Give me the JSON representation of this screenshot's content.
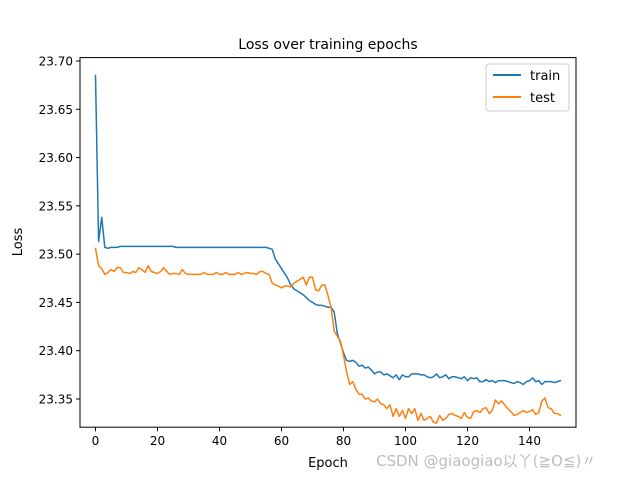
{
  "chart_data": {
    "type": "line",
    "title": "Loss over training epochs",
    "xlabel": "Epoch",
    "ylabel": "Loss",
    "xlim": [
      -5,
      155
    ],
    "ylim": [
      23.3208,
      23.7035
    ],
    "xticks": [
      0,
      20,
      40,
      60,
      80,
      100,
      120,
      140
    ],
    "yticks": [
      23.35,
      23.4,
      23.45,
      23.5,
      23.55,
      23.6,
      23.65,
      23.7
    ],
    "ytick_labels": [
      "23.35",
      "23.40",
      "23.45",
      "23.50",
      "23.55",
      "23.60",
      "23.65",
      "23.70"
    ],
    "legend_position": "top-right",
    "series": [
      {
        "name": "train",
        "color": "#1f77b4",
        "values": [
          23.685,
          23.513,
          23.538,
          23.507,
          23.506,
          23.507,
          23.507,
          23.507,
          23.508,
          23.508,
          23.508,
          23.508,
          23.508,
          23.508,
          23.508,
          23.508,
          23.508,
          23.508,
          23.508,
          23.508,
          23.508,
          23.508,
          23.508,
          23.508,
          23.508,
          23.508,
          23.507,
          23.507,
          23.507,
          23.507,
          23.507,
          23.507,
          23.507,
          23.507,
          23.507,
          23.507,
          23.507,
          23.507,
          23.507,
          23.507,
          23.507,
          23.507,
          23.507,
          23.507,
          23.507,
          23.507,
          23.507,
          23.507,
          23.507,
          23.507,
          23.507,
          23.507,
          23.507,
          23.507,
          23.507,
          23.507,
          23.506,
          23.505,
          23.495,
          23.49,
          23.485,
          23.48,
          23.475,
          23.468,
          23.464,
          23.462,
          23.46,
          23.458,
          23.455,
          23.452,
          23.45,
          23.448,
          23.447,
          23.447,
          23.446,
          23.445,
          23.445,
          23.44,
          23.418,
          23.408,
          23.398,
          23.39,
          23.389,
          23.39,
          23.388,
          23.384,
          23.385,
          23.382,
          23.383,
          23.38,
          23.376,
          23.378,
          23.378,
          23.375,
          23.376,
          23.374,
          23.372,
          23.375,
          23.37,
          23.375,
          23.373,
          23.373,
          23.376,
          23.376,
          23.376,
          23.375,
          23.375,
          23.373,
          23.372,
          23.373,
          23.376,
          23.372,
          23.373,
          23.375,
          23.371,
          23.373,
          23.373,
          23.372,
          23.371,
          23.373,
          23.369,
          23.372,
          23.371,
          23.372,
          23.368,
          23.368,
          23.37,
          23.368,
          23.369,
          23.367,
          23.369,
          23.369,
          23.369,
          23.368,
          23.367,
          23.366,
          23.368,
          23.367,
          23.365,
          23.368,
          23.369,
          23.372,
          23.368,
          23.369,
          23.365,
          23.368,
          23.368,
          23.368,
          23.367,
          23.368,
          23.369
        ]
      },
      {
        "name": "test",
        "color": "#ff7f0e",
        "values": [
          23.506,
          23.488,
          23.485,
          23.479,
          23.481,
          23.484,
          23.482,
          23.486,
          23.486,
          23.481,
          23.481,
          23.48,
          23.482,
          23.481,
          23.486,
          23.484,
          23.481,
          23.488,
          23.482,
          23.481,
          23.48,
          23.482,
          23.486,
          23.482,
          23.479,
          23.48,
          23.48,
          23.479,
          23.484,
          23.48,
          23.479,
          23.479,
          23.479,
          23.479,
          23.479,
          23.481,
          23.479,
          23.479,
          23.479,
          23.481,
          23.479,
          23.479,
          23.481,
          23.479,
          23.479,
          23.479,
          23.481,
          23.479,
          23.48,
          23.481,
          23.48,
          23.48,
          23.479,
          23.482,
          23.482,
          23.48,
          23.479,
          23.47,
          23.468,
          23.467,
          23.465,
          23.467,
          23.467,
          23.466,
          23.47,
          23.472,
          23.474,
          23.476,
          23.468,
          23.476,
          23.476,
          23.463,
          23.462,
          23.468,
          23.468,
          23.457,
          23.445,
          23.42,
          23.415,
          23.41,
          23.395,
          23.378,
          23.365,
          23.368,
          23.36,
          23.355,
          23.355,
          23.35,
          23.351,
          23.348,
          23.347,
          23.35,
          23.345,
          23.344,
          23.34,
          23.344,
          23.332,
          23.34,
          23.332,
          23.338,
          23.33,
          23.34,
          23.335,
          23.34,
          23.328,
          23.335,
          23.328,
          23.33,
          23.332,
          23.326,
          23.325,
          23.333,
          23.328,
          23.33,
          23.334,
          23.335,
          23.333,
          23.332,
          23.33,
          23.336,
          23.331,
          23.33,
          23.337,
          23.338,
          23.336,
          23.34,
          23.341,
          23.335,
          23.338,
          23.349,
          23.345,
          23.348,
          23.344,
          23.34,
          23.337,
          23.333,
          23.334,
          23.336,
          23.338,
          23.336,
          23.337,
          23.339,
          23.334,
          23.336,
          23.348,
          23.351,
          23.341,
          23.34,
          23.335,
          23.335,
          23.333
        ]
      }
    ]
  },
  "watermark": "CSDN @giaogiao以丫(≧O≦)〃"
}
